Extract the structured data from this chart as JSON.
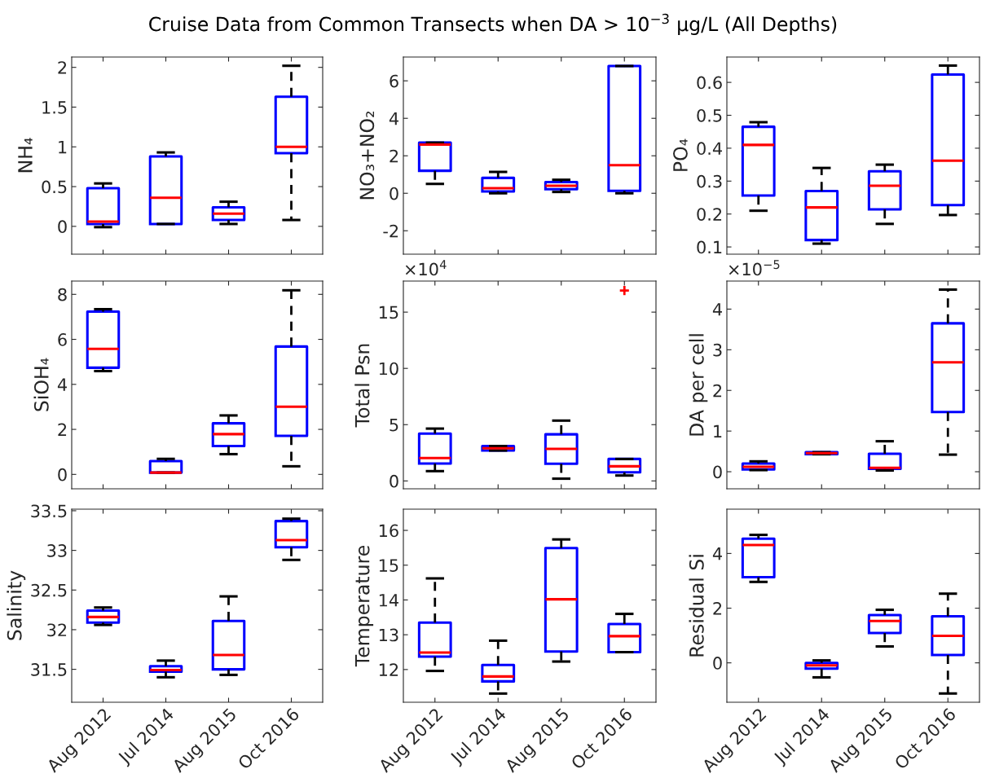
{
  "chart_data": [
    {
      "type": "box",
      "title": "Cruise Data from Common Transects when DA > 10$^{−3}$ μg/L (All Depths)",
      "ylabel": "NH₄",
      "categories": [
        "Aug 2012",
        "Jul 2014",
        "Aug 2015",
        "Oct 2016"
      ],
      "tick_labels": "y",
      "color": "#0000ff",
      "ylim": [
        -0.35,
        2.13
      ],
      "yticks": [
        0,
        0.5,
        1,
        1.5,
        2
      ],
      "boxes": [
        {
          "low": -0.01,
          "q1": 0.03,
          "median": 0.06,
          "q3": 0.48,
          "high": 0.54
        },
        {
          "low": 0.03,
          "q1": 0.03,
          "median": 0.36,
          "q3": 0.88,
          "high": 0.93
        },
        {
          "low": 0.03,
          "q1": 0.08,
          "median": 0.16,
          "q3": 0.24,
          "high": 0.31
        },
        {
          "low": 0.08,
          "q1": 0.92,
          "median": 1.0,
          "q3": 1.63,
          "high": 2.02
        }
      ]
    },
    {
      "type": "box",
      "ylabel": "NO₃+NO₂",
      "categories": [
        "Aug 2012",
        "Jul 2014",
        "Aug 2015",
        "Oct 2016"
      ],
      "tick_labels": "y",
      "color": "#0000ff",
      "ylim": [
        -3.25,
        7.27
      ],
      "yticks": [
        -2,
        0,
        2,
        4,
        6
      ],
      "boxes": [
        {
          "low": 0.5,
          "q1": 1.2,
          "median": 2.6,
          "q3": 2.7,
          "high": 2.7
        },
        {
          "low": 0.0,
          "q1": 0.1,
          "median": 0.27,
          "q3": 0.82,
          "high": 1.14
        },
        {
          "low": 0.07,
          "q1": 0.22,
          "median": 0.4,
          "q3": 0.6,
          "high": 0.72
        },
        {
          "low": 0.0,
          "q1": 0.13,
          "median": 1.5,
          "q3": 6.79,
          "high": 6.79
        }
      ]
    },
    {
      "type": "box",
      "ylabel": "PO₄",
      "categories": [
        "Aug 2012",
        "Jul 2014",
        "Aug 2015",
        "Oct 2016"
      ],
      "tick_labels": "y",
      "color": "#0000ff",
      "ylim": [
        0.078,
        0.677
      ],
      "yticks": [
        0.1,
        0.2,
        0.3,
        0.4,
        0.5,
        0.6
      ],
      "boxes": [
        {
          "low": 0.21,
          "q1": 0.256,
          "median": 0.41,
          "q3": 0.465,
          "high": 0.479
        },
        {
          "low": 0.11,
          "q1": 0.121,
          "median": 0.22,
          "q3": 0.27,
          "high": 0.34
        },
        {
          "low": 0.17,
          "q1": 0.214,
          "median": 0.286,
          "q3": 0.33,
          "high": 0.35
        },
        {
          "low": 0.197,
          "q1": 0.227,
          "median": 0.362,
          "q3": 0.624,
          "high": 0.651
        }
      ]
    },
    {
      "type": "box",
      "ylabel": "SiOH₄",
      "categories": [
        "Aug 2012",
        "Jul 2014",
        "Aug 2015",
        "Oct 2016"
      ],
      "tick_labels": "y",
      "color": "#0000ff",
      "ylim": [
        -0.64,
        8.59
      ],
      "yticks": [
        0,
        2,
        4,
        6,
        8
      ],
      "boxes": [
        {
          "low": 4.59,
          "q1": 4.74,
          "median": 5.58,
          "q3": 7.23,
          "high": 7.34
        },
        {
          "low": 0.08,
          "q1": 0.08,
          "median": 0.08,
          "q3": 0.59,
          "high": 0.69
        },
        {
          "low": 0.9,
          "q1": 1.26,
          "median": 1.79,
          "q3": 2.27,
          "high": 2.62
        },
        {
          "low": 0.36,
          "q1": 1.71,
          "median": 3.01,
          "q3": 5.68,
          "high": 8.18
        }
      ]
    },
    {
      "type": "box",
      "ylabel": "Total Psn",
      "annotations": [
        "×10$^{4}$"
      ],
      "categories": [
        "Aug 2012",
        "Jul 2014",
        "Aug 2015",
        "Oct 2016"
      ],
      "tick_labels": "y",
      "color": "#0000ff",
      "ylim": [
        -0.7,
        17.76
      ],
      "yticks": [
        0,
        5,
        10,
        15
      ],
      "boxes": [
        {
          "low": 0.87,
          "q1": 1.55,
          "median": 2.03,
          "q3": 4.2,
          "high": 4.65
        },
        {
          "low": 2.7,
          "q1": 2.7,
          "median": 2.9,
          "q3": 3.1,
          "high": 3.1
        },
        {
          "low": 0.2,
          "q1": 1.52,
          "median": 2.85,
          "q3": 4.14,
          "high": 5.36
        },
        {
          "low": 0.48,
          "q1": 0.76,
          "median": 1.3,
          "q3": 1.95,
          "high": 1.95,
          "outliers": [
            16.92
          ]
        }
      ]
    },
    {
      "type": "box",
      "ylabel": "DA per cell",
      "annotations": [
        "×10$^{−5}$"
      ],
      "categories": [
        "Aug 2012",
        "Jul 2014",
        "Aug 2015",
        "Oct 2016"
      ],
      "tick_labels": "y",
      "color": "#0000ff",
      "ylim": [
        -0.42,
        4.69
      ],
      "yticks": [
        0,
        1,
        2,
        3,
        4
      ],
      "boxes": [
        {
          "low": 0.04,
          "q1": 0.056,
          "median": 0.12,
          "q3": 0.2,
          "high": 0.255
        },
        {
          "low": 0.43,
          "q1": 0.43,
          "median": 0.455,
          "q3": 0.48,
          "high": 0.48
        },
        {
          "low": 0.03,
          "q1": 0.07,
          "median": 0.096,
          "q3": 0.44,
          "high": 0.75
        },
        {
          "low": 0.42,
          "q1": 1.47,
          "median": 2.69,
          "q3": 3.65,
          "high": 4.48
        }
      ]
    },
    {
      "type": "box",
      "ylabel": "Salinity",
      "categories": [
        "Aug 2012",
        "Jul 2014",
        "Aug 2015",
        "Oct 2016"
      ],
      "color": "#0000ff",
      "ylim": [
        31.085,
        33.52
      ],
      "yticks": [
        31.5,
        32,
        32.5,
        33,
        33.5
      ],
      "boxes": [
        {
          "low": 32.06,
          "q1": 32.09,
          "median": 32.16,
          "q3": 32.24,
          "high": 32.28
        },
        {
          "low": 31.4,
          "q1": 31.47,
          "median": 31.49,
          "q3": 31.54,
          "high": 31.61
        },
        {
          "low": 31.43,
          "q1": 31.5,
          "median": 31.68,
          "q3": 32.11,
          "high": 32.42
        },
        {
          "low": 32.88,
          "q1": 33.04,
          "median": 33.13,
          "q3": 33.37,
          "high": 33.4
        }
      ]
    },
    {
      "type": "box",
      "ylabel": "Temperature",
      "categories": [
        "Aug 2012",
        "Jul 2014",
        "Aug 2015",
        "Oct 2016"
      ],
      "color": "#0000ff",
      "ylim": [
        11.06,
        16.61
      ],
      "yticks": [
        12,
        13,
        14,
        15,
        16
      ],
      "boxes": [
        {
          "low": 11.96,
          "q1": 12.37,
          "median": 12.49,
          "q3": 13.35,
          "high": 14.62
        },
        {
          "low": 11.31,
          "q1": 11.66,
          "median": 11.8,
          "q3": 12.13,
          "high": 12.83
        },
        {
          "low": 12.23,
          "q1": 12.52,
          "median": 14.02,
          "q3": 15.49,
          "high": 15.74
        },
        {
          "low": 12.5,
          "q1": 12.5,
          "median": 12.96,
          "q3": 13.31,
          "high": 13.6
        }
      ]
    },
    {
      "type": "box",
      "ylabel": "Residual Si",
      "categories": [
        "Aug 2012",
        "Jul 2014",
        "Aug 2015",
        "Oct 2016"
      ],
      "color": "#0000ff",
      "ylim": [
        -1.44,
        5.62
      ],
      "yticks": [
        0,
        2,
        4
      ],
      "boxes": [
        {
          "low": 2.96,
          "q1": 3.13,
          "median": 4.31,
          "q3": 4.54,
          "high": 4.68
        },
        {
          "low": -0.53,
          "q1": -0.21,
          "median": -0.09,
          "q3": 0.0,
          "high": 0.09
        },
        {
          "low": 0.6,
          "q1": 1.09,
          "median": 1.53,
          "q3": 1.75,
          "high": 1.94
        },
        {
          "low": -1.12,
          "q1": 0.29,
          "median": 0.99,
          "q3": 1.7,
          "high": 2.53
        }
      ]
    }
  ]
}
